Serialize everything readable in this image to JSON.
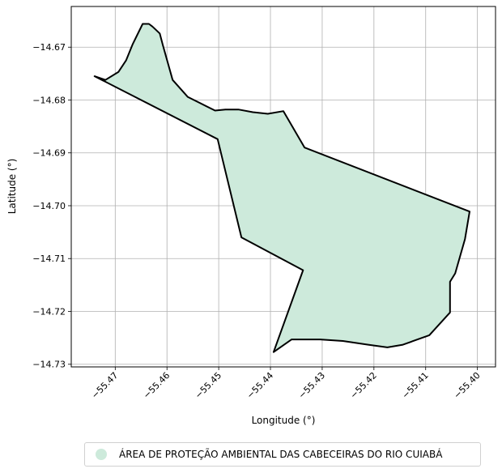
{
  "chart_data": {
    "type": "map",
    "xlabel": "Longitude (°)",
    "ylabel": "Latitude (°)",
    "xlim": [
      -55.4785,
      -55.3965
    ],
    "ylim": [
      -14.7305,
      -14.6623
    ],
    "x_ticks": [
      {
        "value": -55.47,
        "label": "−55.47"
      },
      {
        "value": -55.46,
        "label": "−55.46"
      },
      {
        "value": -55.45,
        "label": "−55.45"
      },
      {
        "value": -55.44,
        "label": "−55.44"
      },
      {
        "value": -55.43,
        "label": "−55.43"
      },
      {
        "value": -55.42,
        "label": "−55.42"
      },
      {
        "value": -55.41,
        "label": "−55.41"
      },
      {
        "value": -55.4,
        "label": "−55.40"
      }
    ],
    "y_ticks": [
      {
        "value": -14.67,
        "label": "−14.67"
      },
      {
        "value": -14.68,
        "label": "−14.68"
      },
      {
        "value": -14.69,
        "label": "−14.69"
      },
      {
        "value": -14.7,
        "label": "−14.70"
      },
      {
        "value": -14.71,
        "label": "−14.71"
      },
      {
        "value": -14.72,
        "label": "−14.72"
      },
      {
        "value": -14.73,
        "label": "−14.73"
      }
    ],
    "grid": true,
    "legend_position": "bottom-center",
    "series": [
      {
        "name": "ÁREA DE PROTEÇÃO AMBIENTAL DAS CABECEIRAS DO RIO CUIABÁ",
        "fill": "#cdeadb",
        "stroke": "#000000",
        "polygon": [
          [
            -55.4719,
            -14.6762
          ],
          [
            -55.4694,
            -14.6747
          ],
          [
            -55.4679,
            -14.6725
          ],
          [
            -55.4666,
            -14.6694
          ],
          [
            -55.4647,
            -14.6656
          ],
          [
            -55.4635,
            -14.6656
          ],
          [
            -55.4628,
            -14.6661
          ],
          [
            -55.4614,
            -14.6674
          ],
          [
            -55.4608,
            -14.6696
          ],
          [
            -55.4589,
            -14.6762
          ],
          [
            -55.456,
            -14.6794
          ],
          [
            -55.4507,
            -14.682
          ],
          [
            -55.4487,
            -14.6818
          ],
          [
            -55.4462,
            -14.6818
          ],
          [
            -55.4434,
            -14.6823
          ],
          [
            -55.4405,
            -14.6826
          ],
          [
            -55.4375,
            -14.6821
          ],
          [
            -55.4334,
            -14.689
          ],
          [
            -55.4015,
            -14.7011
          ],
          [
            -55.4024,
            -14.7063
          ],
          [
            -55.4043,
            -14.7128
          ],
          [
            -55.4053,
            -14.7144
          ],
          [
            -55.4053,
            -14.7202
          ],
          [
            -55.4093,
            -14.7245
          ],
          [
            -55.4144,
            -14.7263
          ],
          [
            -55.4174,
            -14.7268
          ],
          [
            -55.4211,
            -14.7263
          ],
          [
            -55.426,
            -14.7256
          ],
          [
            -55.4304,
            -14.7253
          ],
          [
            -55.4359,
            -14.7253
          ],
          [
            -55.4394,
            -14.7277
          ],
          [
            -55.4337,
            -14.7122
          ],
          [
            -55.4456,
            -14.706
          ],
          [
            -55.4502,
            -14.6874
          ],
          [
            -55.474,
            -14.6755
          ]
        ]
      }
    ]
  }
}
